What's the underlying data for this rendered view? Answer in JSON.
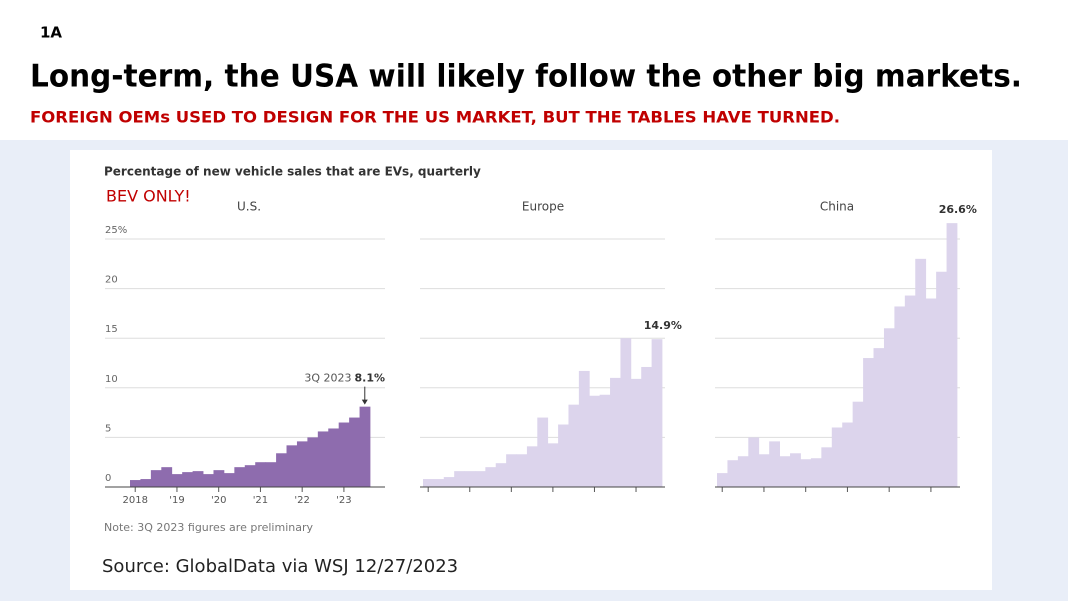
{
  "slide": {
    "label": "1A",
    "title": "Long-term, the USA will likely follow the other big markets.",
    "subtitle": "FOREIGN OEMs USED TO DESIGN FOR THE US MARKET, BUT THE TABLES HAVE TURNED."
  },
  "figure": {
    "heading": "Percentage of new vehicle sales that are EVs, quarterly",
    "callout": "BEV ONLY!",
    "note": "Note: 3Q 2023 figures are preliminary",
    "source": "Source: GlobalData via WSJ 12/27/2023"
  },
  "chart_data": [
    {
      "type": "bar",
      "title": "U.S.",
      "color": "#8e6cae",
      "categories": [
        "2018",
        null,
        null,
        null,
        "'19",
        null,
        null,
        null,
        "'20",
        null,
        null,
        null,
        "'21",
        null,
        null,
        null,
        "'22",
        null,
        null,
        null,
        "'23",
        null,
        null
      ],
      "values": [
        0.7,
        0.8,
        1.7,
        2.0,
        1.3,
        1.5,
        1.6,
        1.3,
        1.7,
        1.4,
        2.0,
        2.2,
        2.5,
        2.5,
        3.4,
        4.2,
        4.6,
        5.0,
        5.6,
        5.9,
        6.5,
        7.0,
        8.1
      ],
      "value_labels": [
        null,
        null,
        null,
        null,
        null,
        null,
        null,
        null,
        null,
        null,
        null,
        null,
        null,
        null,
        null,
        null,
        null,
        null,
        null,
        null,
        null,
        null,
        "8.1%"
      ],
      "annotation": "3Q 2023",
      "ylim": [
        0,
        25
      ],
      "yticks": [
        0,
        5,
        10,
        15,
        20,
        {
          "value": 25,
          "label": "25%"
        }
      ],
      "grid": true,
      "tick_labels": true
    },
    {
      "type": "bar",
      "title": "Europe",
      "color": "#dcd4ec",
      "categories": [
        null,
        null,
        null,
        null,
        null,
        null,
        null,
        null,
        null,
        null,
        null,
        null,
        null,
        null,
        null,
        null,
        null,
        null,
        null,
        null,
        null,
        null,
        null
      ],
      "values": [
        0.8,
        0.8,
        1.0,
        1.6,
        1.6,
        1.6,
        2.0,
        2.4,
        3.3,
        3.3,
        4.1,
        7.0,
        4.4,
        6.3,
        8.3,
        11.7,
        9.2,
        9.3,
        11.0,
        15.0,
        10.9,
        12.1,
        14.9
      ],
      "value_labels": [
        null,
        null,
        null,
        null,
        null,
        null,
        null,
        null,
        null,
        null,
        null,
        null,
        null,
        null,
        null,
        null,
        null,
        null,
        null,
        null,
        null,
        null,
        "14.9%"
      ],
      "ylim": [
        0,
        25
      ],
      "yticks": [
        0,
        5,
        10,
        15,
        20,
        25
      ],
      "grid": true,
      "tick_labels": false
    },
    {
      "type": "bar",
      "title": "China",
      "color": "#dcd4ec",
      "categories": [
        null,
        null,
        null,
        null,
        null,
        null,
        null,
        null,
        null,
        null,
        null,
        null,
        null,
        null,
        null,
        null,
        null,
        null,
        null,
        null,
        null,
        null,
        null
      ],
      "values": [
        1.4,
        2.7,
        3.1,
        5.0,
        3.3,
        4.6,
        3.1,
        3.4,
        2.8,
        2.9,
        4.0,
        6.0,
        6.5,
        8.6,
        13.0,
        14.0,
        16.0,
        18.2,
        19.3,
        23.0,
        19.0,
        21.7,
        26.6
      ],
      "value_labels": [
        null,
        null,
        null,
        null,
        null,
        null,
        null,
        null,
        null,
        null,
        null,
        null,
        null,
        null,
        null,
        null,
        null,
        null,
        null,
        null,
        null,
        null,
        "26.6%"
      ],
      "ylim": [
        0,
        25
      ],
      "yticks": [
        0,
        5,
        10,
        15,
        20,
        25
      ],
      "grid": true,
      "tick_labels": false
    }
  ]
}
